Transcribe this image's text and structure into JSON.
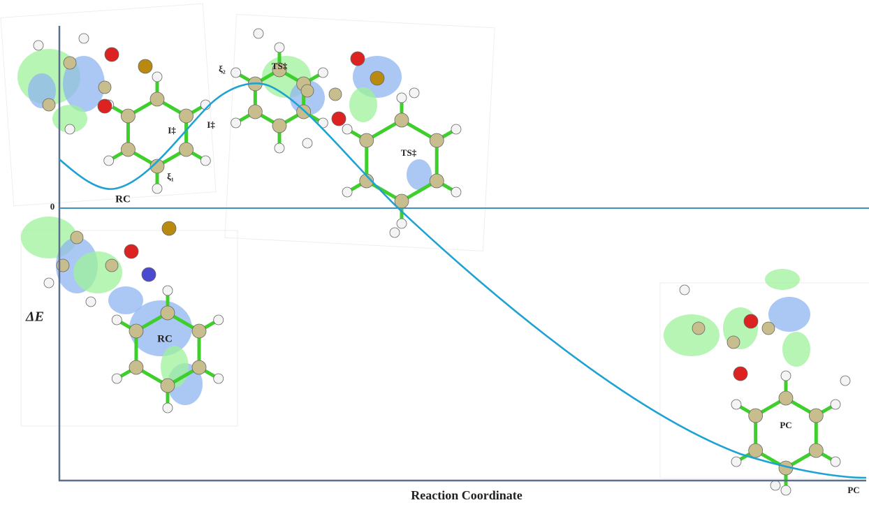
{
  "axes": {
    "y_label": "ΔE",
    "zero_label": "0",
    "x_label": "Reaction Coordinate",
    "end_label": "PC"
  },
  "curve_labels": {
    "start": "RC",
    "xi1": "ξ₁",
    "xi2": "ξ₂",
    "i_left": "I‡",
    "i_right": "I‡"
  },
  "structures": [
    {
      "label": "TS‡"
    },
    {
      "label": "TS‡"
    },
    {
      "label": "RC"
    },
    {
      "label": "PC"
    }
  ]
}
